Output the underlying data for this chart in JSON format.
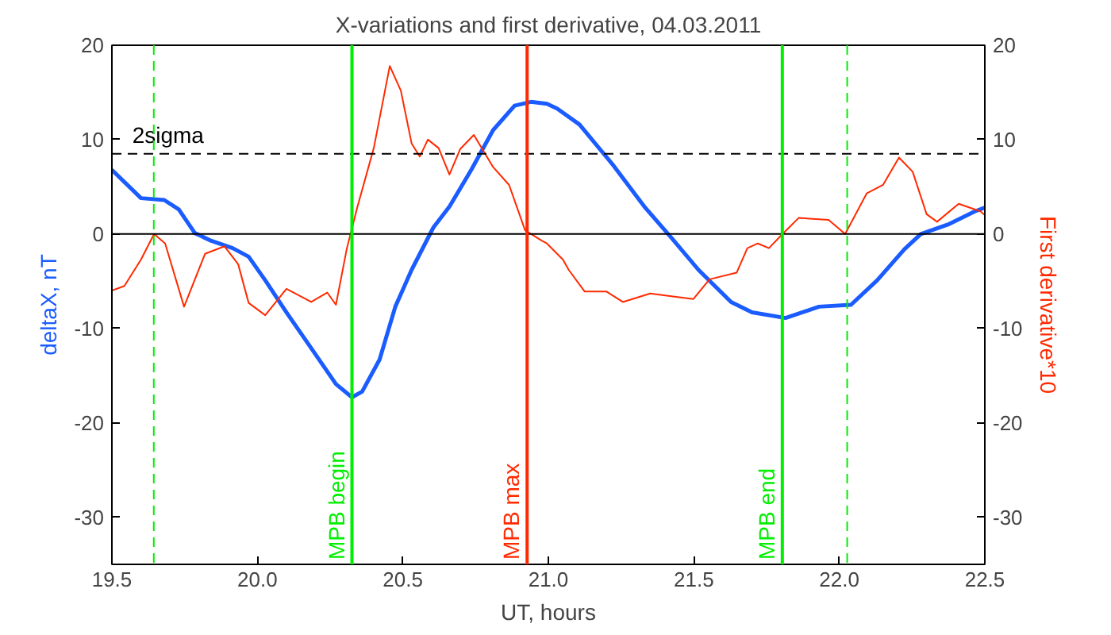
{
  "chart_data": {
    "type": "line",
    "title": "X-variations and first derivative, 04.03.2011",
    "xlabel": "UT, hours",
    "ylabel": "deltaX, nT",
    "y2label": "First derivative*10",
    "xlim": [
      19.5,
      22.5
    ],
    "xticks": [
      19.5,
      {
        "value": 20,
        "label": "20.0"
      },
      20.5,
      {
        "value": 21,
        "label": "21.0"
      },
      21.5,
      {
        "value": 22,
        "label": "22.0"
      },
      22.5
    ],
    "ylim": [
      -35,
      20
    ],
    "yticks": [
      -30,
      -20,
      -10,
      0,
      10,
      20
    ],
    "y2lim": [
      -35,
      20
    ],
    "y2ticks": [
      -30,
      -20,
      -10,
      0,
      10,
      20
    ],
    "grid": false,
    "series": [
      {
        "color": "#1a5cff",
        "x": [
          19.5,
          19.6,
          19.68,
          19.73,
          19.785,
          19.84,
          19.915,
          19.97,
          20.027,
          20.1,
          20.176,
          20.27,
          20.325,
          20.36,
          20.42,
          20.474,
          20.53,
          20.605,
          20.66,
          20.735,
          20.81,
          20.884,
          20.94,
          20.995,
          21.03,
          21.107,
          21.22,
          21.33,
          21.423,
          21.516,
          21.628,
          21.7,
          21.815,
          21.93,
          22.04,
          22.13,
          22.224,
          22.28,
          22.373,
          22.466,
          22.5
        ],
        "values": [
          6.8,
          3.8,
          3.6,
          2.6,
          0.1,
          -0.7,
          -1.5,
          -2.4,
          -4.9,
          -8.3,
          -11.7,
          -15.9,
          -17.3,
          -16.7,
          -13.3,
          -7.7,
          -3.8,
          0.7,
          2.9,
          6.8,
          11.0,
          13.6,
          14.0,
          13.8,
          13.3,
          11.6,
          7.4,
          2.9,
          -0.4,
          -3.8,
          -7.2,
          -8.3,
          -8.9,
          -7.7,
          -7.5,
          -4.9,
          -1.6,
          0.0,
          1.0,
          2.4,
          2.8
        ]
      },
      {
        "color": "#ff2a00",
        "axis": "y2",
        "x": [
          19.5,
          19.543,
          19.6,
          19.645,
          19.683,
          19.748,
          19.82,
          19.887,
          19.934,
          19.97,
          20.027,
          20.1,
          20.185,
          20.24,
          20.27,
          20.307,
          20.344,
          20.4,
          20.455,
          20.493,
          20.53,
          20.558,
          20.586,
          20.623,
          20.66,
          20.697,
          20.744,
          20.81,
          20.865,
          20.92,
          20.977,
          20.995,
          21.05,
          21.07,
          21.125,
          21.2,
          21.256,
          21.35,
          21.423,
          21.498,
          21.554,
          21.647,
          21.684,
          21.72,
          21.758,
          21.805,
          21.86,
          21.963,
          22.02,
          22.094,
          22.15,
          22.205,
          22.252,
          22.3,
          22.336,
          22.41,
          22.485,
          22.5
        ],
        "values": [
          -6.0,
          -5.5,
          -2.7,
          0.0,
          -1.0,
          -7.7,
          -2.1,
          -1.3,
          -3.2,
          -7.3,
          -8.6,
          -5.8,
          -7.2,
          -6.2,
          -7.5,
          -1.6,
          2.9,
          9.1,
          17.8,
          15.2,
          9.6,
          8.2,
          10.0,
          9.1,
          6.3,
          9.0,
          10.5,
          7.1,
          5.2,
          0.4,
          -0.7,
          -1.0,
          -2.7,
          -3.8,
          -6.1,
          -6.1,
          -7.2,
          -6.3,
          -6.6,
          -6.9,
          -4.8,
          -4.1,
          -1.5,
          -1.0,
          -1.5,
          0.0,
          1.7,
          1.5,
          0.0,
          4.3,
          5.2,
          8.1,
          6.6,
          2.1,
          1.3,
          3.2,
          2.4,
          2.0
        ]
      }
    ],
    "ref_lines": [
      {
        "axis": "y",
        "value": 0,
        "color": "#000000",
        "line_style": "solid"
      },
      {
        "axis": "y",
        "value": 8.5,
        "label": "2sigma",
        "color": "#000000",
        "line_style": "dashed"
      },
      {
        "axis": "x",
        "value": 19.644,
        "color": "#00ee00",
        "line_style": "dashed"
      },
      {
        "axis": "x",
        "value": 20.325,
        "label": "MPB begin",
        "color": "#00ee00",
        "line_style": "solid"
      },
      {
        "axis": "x",
        "value": 20.927,
        "label": "MPB max",
        "color": "#ff2a00",
        "line_style": "solid"
      },
      {
        "axis": "x",
        "value": 21.804,
        "label": "MPB end",
        "color": "#00ee00",
        "line_style": "solid"
      },
      {
        "axis": "x",
        "value": 22.027,
        "color": "#00ee00",
        "line_style": "dashed"
      }
    ]
  }
}
